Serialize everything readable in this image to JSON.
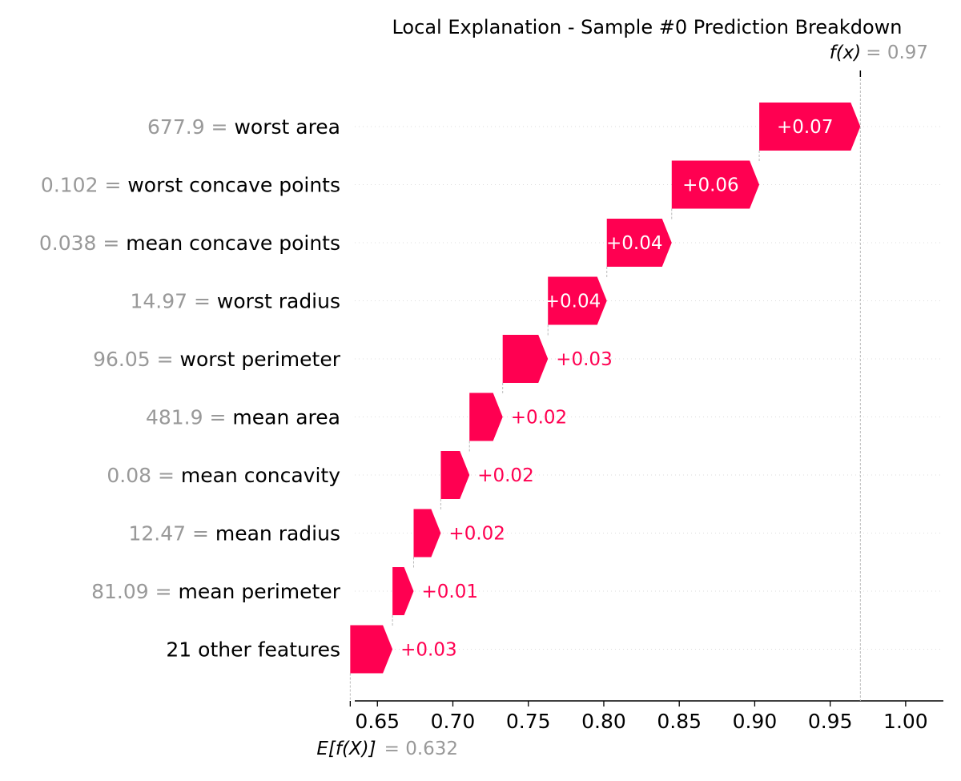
{
  "chart_data": {
    "type": "waterfall",
    "title": "Local Explanation - Sample #0 Prediction Breakdown",
    "base_value": 0.632,
    "base_label": "E[f(X)]",
    "base_value_text": "= 0.632",
    "output_value": 0.97,
    "output_label": "f(x)",
    "output_value_text": "= 0.97",
    "xlim": [
      0.635,
      1.025
    ],
    "xticks": [
      0.65,
      0.7,
      0.75,
      0.8,
      0.85,
      0.9,
      0.95,
      1.0
    ],
    "xtick_labels": [
      "0.65",
      "0.70",
      "0.75",
      "0.80",
      "0.85",
      "0.90",
      "0.95",
      "1.00"
    ],
    "features": [
      {
        "value": "677.9",
        "name": "worst area",
        "start": 0.903,
        "end": 0.97,
        "label": "+0.07"
      },
      {
        "value": "0.102",
        "name": "worst concave points",
        "start": 0.845,
        "end": 0.903,
        "label": "+0.06"
      },
      {
        "value": "0.038",
        "name": "mean concave points",
        "start": 0.802,
        "end": 0.845,
        "label": "+0.04"
      },
      {
        "value": "14.97",
        "name": "worst radius",
        "start": 0.763,
        "end": 0.802,
        "label": "+0.04"
      },
      {
        "value": "96.05",
        "name": "worst perimeter",
        "start": 0.733,
        "end": 0.763,
        "label": "+0.03"
      },
      {
        "value": "481.9",
        "name": "mean area",
        "start": 0.711,
        "end": 0.733,
        "label": "+0.02"
      },
      {
        "value": "0.08",
        "name": "mean concavity",
        "start": 0.692,
        "end": 0.711,
        "label": "+0.02"
      },
      {
        "value": "12.47",
        "name": "mean radius",
        "start": 0.674,
        "end": 0.692,
        "label": "+0.02"
      },
      {
        "value": "81.09",
        "name": "mean perimeter",
        "start": 0.66,
        "end": 0.674,
        "label": "+0.01"
      },
      {
        "value": "",
        "name": "21 other features",
        "start": 0.632,
        "end": 0.66,
        "label": "+0.03"
      }
    ],
    "colors": {
      "positive": "#ff0051",
      "feature_value": "#999999",
      "guide": "#cccccc"
    }
  }
}
